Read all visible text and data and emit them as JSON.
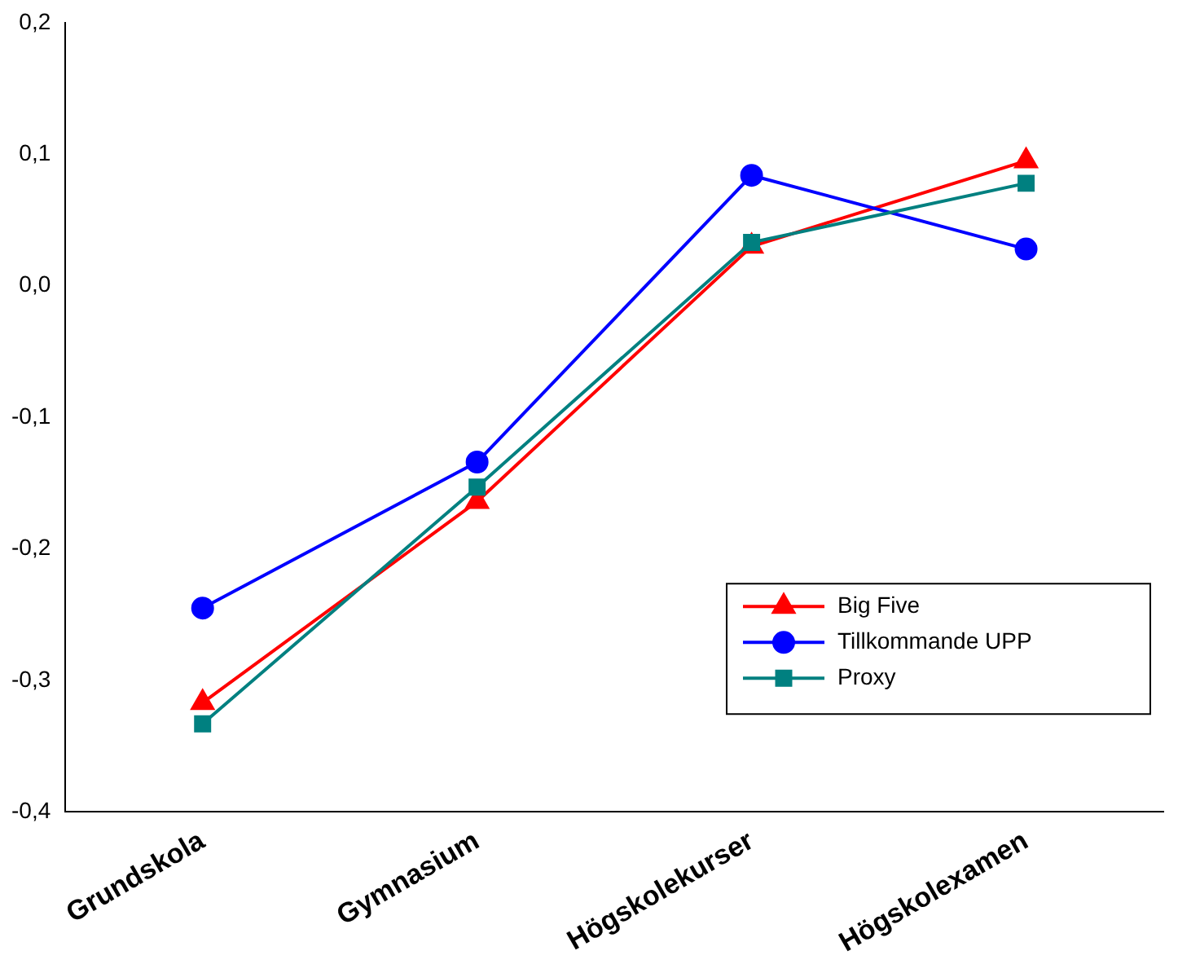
{
  "chart_data": {
    "type": "line",
    "categories": [
      "Grundskola",
      "Gymnasium",
      "Högskolekurser",
      "Högskolexamen"
    ],
    "series": [
      {
        "name": "Big Five",
        "color": "#ff0000",
        "marker": "triangle",
        "values": [
          -0.317,
          -0.164,
          0.03,
          0.095
        ]
      },
      {
        "name": "Tillkommande UPP",
        "color": "#0000ff",
        "marker": "circle",
        "values": [
          -0.245,
          -0.134,
          0.084,
          0.028
        ]
      },
      {
        "name": "Proxy",
        "color": "#008080",
        "marker": "square",
        "values": [
          -0.333,
          -0.153,
          0.033,
          0.078
        ]
      }
    ],
    "ylim": [
      -0.4,
      0.2
    ],
    "yticks": [
      {
        "value": -0.4,
        "label": "-0,4"
      },
      {
        "value": -0.3,
        "label": "-0,3"
      },
      {
        "value": -0.2,
        "label": "-0,2"
      },
      {
        "value": -0.1,
        "label": "-0,1"
      },
      {
        "value": 0,
        "label": "0,0"
      },
      {
        "value": 0.1,
        "label": "0,1"
      },
      {
        "value": 0.2,
        "label": "0,2"
      }
    ],
    "grid": false,
    "legend": "bottom right",
    "line_style": "solid"
  }
}
